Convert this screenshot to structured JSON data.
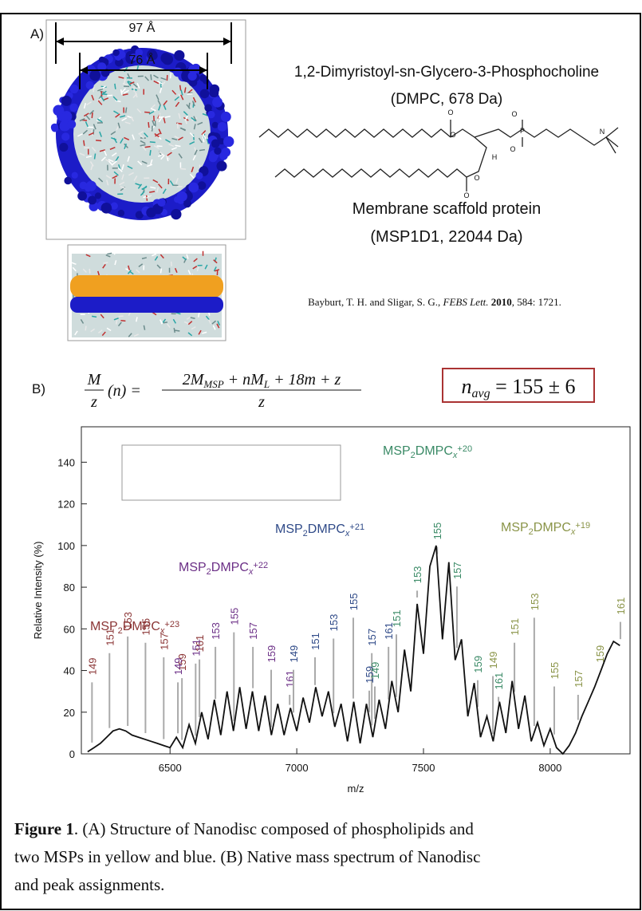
{
  "panel_a": {
    "label": "A)",
    "dim_outer": "97 Å",
    "dim_inner": "76 Å",
    "lipid_name": "1,2-Dimyristoyl-sn-Glycero-3-Phosphocholine",
    "lipid_info": "(DMPC, 678 Da)",
    "structure_atoms": [
      "O",
      "O",
      "O",
      "O",
      "P",
      "O",
      "O",
      "H",
      "N"
    ],
    "protein_name": "Membrane scaffold protein",
    "protein_info": "(MSP1D1, 22044 Da)",
    "citation": [
      "Bayburt, T. H. and Sligar, S. G., ",
      "FEBS Lett. ",
      "2010",
      ", 584: 1721."
    ]
  },
  "panel_b": {
    "label": "B)",
    "equation": {
      "lhs_numerator": "M",
      "lhs_denominator": "z",
      "lhs_argument": "(n) =",
      "numerator": [
        "2M",
        "MSP",
        " + nM",
        "L",
        " + 18m + z"
      ],
      "denominator": "z"
    },
    "n_avg": [
      "n",
      "avg",
      " = 155 ± 6"
    ]
  },
  "chart_data": {
    "type": "line",
    "x_label": "m/z",
    "y_label": "Relative Intensity (%)",
    "color": "#111111",
    "xlim": [
      6150,
      8315
    ],
    "ylim": [
      0,
      157
    ],
    "xticks": [
      6500,
      7000,
      7500,
      8000
    ],
    "yticks": [
      0,
      20,
      40,
      60,
      80,
      100,
      120,
      140
    ],
    "x": [
      6175,
      6200,
      6225,
      6250,
      6275,
      6300,
      6325,
      6350,
      6375,
      6400,
      6425,
      6450,
      6475,
      6500,
      6525,
      6550,
      6575,
      6600,
      6625,
      6650,
      6675,
      6700,
      6725,
      6750,
      6775,
      6800,
      6825,
      6850,
      6875,
      6900,
      6925,
      6950,
      6975,
      7000,
      7025,
      7050,
      7075,
      7100,
      7125,
      7150,
      7175,
      7200,
      7225,
      7250,
      7275,
      7300,
      7325,
      7350,
      7375,
      7400,
      7425,
      7450,
      7475,
      7500,
      7525,
      7550,
      7575,
      7600,
      7625,
      7650,
      7675,
      7700,
      7725,
      7750,
      7775,
      7800,
      7825,
      7850,
      7875,
      7900,
      7925,
      7950,
      7975,
      8000,
      8025,
      8050,
      8075,
      8100,
      8125,
      8150,
      8175,
      8200,
      8225,
      8250,
      8275
    ],
    "values": [
      1,
      3,
      5,
      8,
      11,
      12,
      11,
      9,
      8,
      7,
      6,
      5,
      4,
      3,
      8,
      3,
      14,
      5,
      20,
      7,
      26,
      9,
      30,
      11,
      32,
      12,
      30,
      11,
      28,
      9,
      24,
      9,
      22,
      11,
      27,
      15,
      32,
      18,
      30,
      13,
      24,
      6,
      25,
      5,
      24,
      8,
      26,
      12,
      35,
      20,
      50,
      30,
      72,
      48,
      90,
      100,
      55,
      92,
      45,
      55,
      18,
      34,
      8,
      18,
      6,
      25,
      10,
      35,
      12,
      28,
      6,
      15,
      4,
      12,
      3,
      0,
      4,
      10,
      18,
      25,
      32,
      40,
      48,
      54,
      52
    ],
    "species": [
      "MSP",
      "2",
      "DMPC",
      "x"
    ],
    "charge_groups": [
      {
        "charge": "+23",
        "color": "#8b3535",
        "peaks": [
          {
            "label": 149,
            "x": 6192,
            "y": 42
          },
          {
            "label": 151,
            "x": 6261,
            "y": 56
          },
          {
            "label": 153,
            "x": 6333,
            "y": 64
          },
          {
            "label": 155,
            "x": 6403,
            "y": 61
          },
          {
            "label": 157,
            "x": 6475,
            "y": 54
          },
          {
            "label": 159,
            "x": 6547,
            "y": 44
          },
          {
            "label": 161,
            "x": 6616,
            "y": 53
          }
        ]
      },
      {
        "charge": "+22",
        "color": "#6b2f86",
        "peaks": [
          {
            "label": 149,
            "x": 6531,
            "y": 42
          },
          {
            "label": 151,
            "x": 6601,
            "y": 51
          },
          {
            "label": 153,
            "x": 6679,
            "y": 59
          },
          {
            "label": 155,
            "x": 6752,
            "y": 66
          },
          {
            "label": 157,
            "x": 6827,
            "y": 59
          },
          {
            "label": 159,
            "x": 6899,
            "y": 48
          },
          {
            "label": 161,
            "x": 6972,
            "y": 36
          }
        ]
      },
      {
        "charge": "+21",
        "color": "#2f4a88",
        "peaks": [
          {
            "label": 149,
            "x": 6987,
            "y": 48
          },
          {
            "label": 151,
            "x": 7072,
            "y": 54
          },
          {
            "label": 153,
            "x": 7145,
            "y": 63
          },
          {
            "label": 155,
            "x": 7223,
            "y": 73
          },
          {
            "label": 157,
            "x": 7296,
            "y": 56
          },
          {
            "label": 159,
            "x": 7286,
            "y": 38
          },
          {
            "label": 161,
            "x": 7362,
            "y": 59
          }
        ]
      },
      {
        "charge": "+20",
        "color": "#3a8a66",
        "peaks": [
          {
            "label": 149,
            "x": 7308,
            "y": 40
          },
          {
            "label": 151,
            "x": 7393,
            "y": 65
          },
          {
            "label": 153,
            "x": 7475,
            "y": 86
          },
          {
            "label": 155,
            "x": 7554,
            "y": 107
          },
          {
            "label": 157,
            "x": 7632,
            "y": 88
          },
          {
            "label": 159,
            "x": 7714,
            "y": 43
          },
          {
            "label": 161,
            "x": 7796,
            "y": 35
          }
        ]
      },
      {
        "charge": "+19",
        "color": "#8a9448",
        "peaks": [
          {
            "label": 149,
            "x": 7774,
            "y": 45
          },
          {
            "label": 151,
            "x": 7859,
            "y": 61
          },
          {
            "label": 153,
            "x": 7937,
            "y": 73
          },
          {
            "label": 155,
            "x": 8016,
            "y": 40
          },
          {
            "label": 157,
            "x": 8110,
            "y": 36
          },
          {
            "label": 159,
            "x": 8195,
            "y": 48
          },
          {
            "label": 161,
            "x": 8277,
            "y": 71
          }
        ]
      }
    ]
  },
  "caption": {
    "label": "Figure 1",
    "lines": [
      ". (A) Structure of Nanodisc composed of phospholipids and",
      "two MSPs in yellow and blue. (B) Native mass spectrum of Nanodisc",
      "and peak assignments."
    ]
  }
}
